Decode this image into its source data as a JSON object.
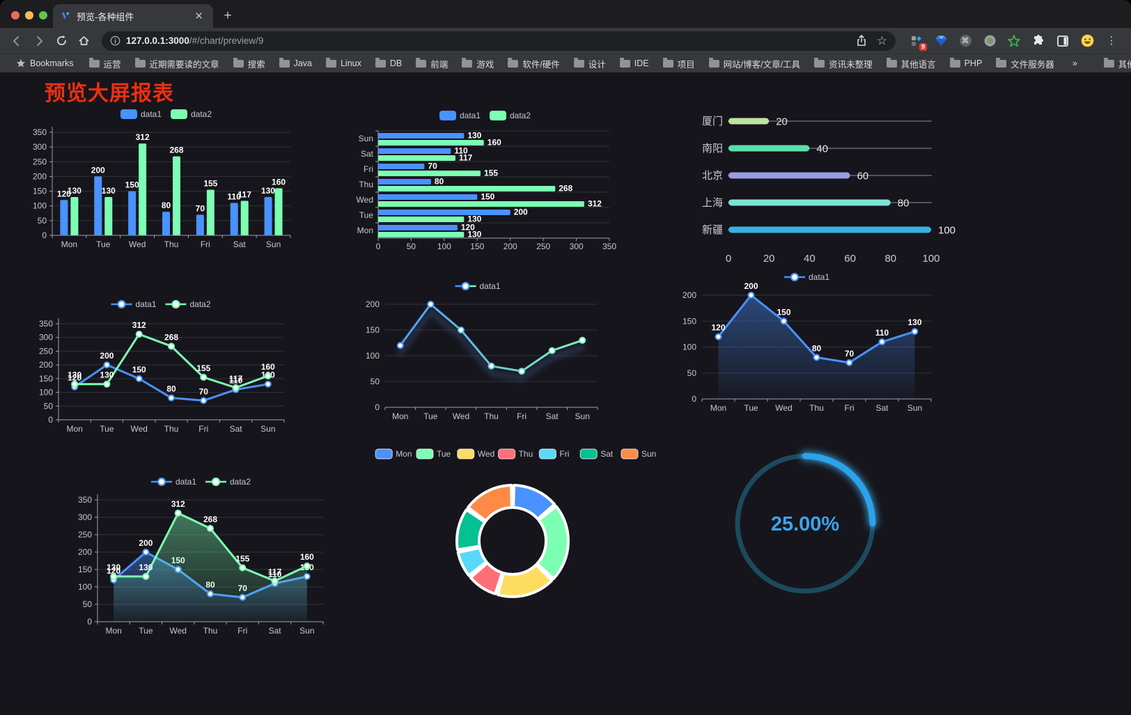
{
  "browser": {
    "tab": {
      "title": "预览-各种组件"
    },
    "url": {
      "host": "127.0.0.1:3000",
      "path": "/#/chart/preview/9"
    },
    "extension_badge": "9",
    "bookmarks_bar": {
      "root_label": "Bookmarks",
      "folders": [
        "运营",
        "近期需要读的文章",
        "搜索",
        "Java",
        "Linux",
        "DB",
        "前端",
        "游戏",
        "软件/硬件",
        "设计",
        "IDE",
        "项目",
        "网站/博客/文章/工具",
        "资讯未整理",
        "其他语言",
        "PHP",
        "文件服务器"
      ],
      "overflow": "»",
      "other": "其他书签"
    }
  },
  "page": {
    "title": "预览大屏报表",
    "title_color": "#ee2f10",
    "background": "#16151c"
  },
  "palette": {
    "data1": "#4992ff",
    "data2": "#7cffb2",
    "grid": "#31323c",
    "axis": "#9da0ae",
    "tick_text": "#c6c8d2",
    "value_label": "#ffffff"
  },
  "chart_data": [
    {
      "id": "grouped-bar-weekly",
      "type": "bar",
      "categories": [
        "Mon",
        "Tue",
        "Wed",
        "Thu",
        "Fri",
        "Sat",
        "Sun"
      ],
      "series": [
        {
          "name": "data1",
          "color": "#4992ff",
          "values": [
            120,
            200,
            150,
            80,
            70,
            110,
            130
          ]
        },
        {
          "name": "data2",
          "color": "#7cffb2",
          "values": [
            130,
            130,
            312,
            268,
            155,
            117,
            160
          ]
        }
      ],
      "ylim": [
        0,
        350
      ],
      "ytick_step": 50,
      "grid": true,
      "legend_position": "top"
    },
    {
      "id": "horizontal-bar-weekly",
      "type": "bar",
      "orientation": "horizontal",
      "categories_top_to_bottom": [
        "Sun",
        "Sat",
        "Fri",
        "Thu",
        "Wed",
        "Tue",
        "Mon"
      ],
      "series": [
        {
          "name": "data1",
          "color": "#4992ff",
          "values_top_to_bottom": [
            130,
            110,
            70,
            80,
            150,
            200,
            120
          ]
        },
        {
          "name": "data2",
          "color": "#7cffb2",
          "values_top_to_bottom": [
            160,
            117,
            155,
            268,
            312,
            130,
            130
          ]
        }
      ],
      "xlim": [
        0,
        350
      ],
      "xticks": [
        0,
        50,
        100,
        150,
        200,
        250,
        300,
        350
      ],
      "grid": true,
      "legend_position": "top"
    },
    {
      "id": "city-progress",
      "type": "bar",
      "orientation": "horizontal",
      "variant": "progress",
      "categories": [
        "厦门",
        "南阳",
        "北京",
        "上海",
        "新疆"
      ],
      "values": [
        20,
        40,
        60,
        80,
        100
      ],
      "colors": [
        "#bfe3a1",
        "#58e0aa",
        "#9a9ce5",
        "#7ce3d5",
        "#38b1e3"
      ],
      "xlim": [
        0,
        100
      ],
      "xticks": [
        0,
        20,
        40,
        60,
        80,
        100
      ],
      "grid": false
    },
    {
      "id": "line-weekly",
      "type": "line",
      "categories": [
        "Mon",
        "Tue",
        "Wed",
        "Thu",
        "Fri",
        "Sat",
        "Sun"
      ],
      "series": [
        {
          "name": "data1",
          "color": "#4992ff",
          "values": [
            120,
            200,
            150,
            80,
            70,
            110,
            130
          ]
        },
        {
          "name": "data2",
          "color": "#7cffb2",
          "values": [
            130,
            130,
            312,
            268,
            155,
            117,
            160
          ]
        }
      ],
      "ylim": [
        0,
        350
      ],
      "ytick_step": 50,
      "grid": true,
      "point_labels": true,
      "legend_position": "top"
    },
    {
      "id": "gradient-line-weekly",
      "type": "line",
      "categories": [
        "Mon",
        "Tue",
        "Wed",
        "Thu",
        "Fri",
        "Sat",
        "Sun"
      ],
      "series": [
        {
          "name": "data1",
          "gradient": [
            "#4992ff",
            "#7cffb2"
          ],
          "values": [
            120,
            200,
            150,
            80,
            70,
            110,
            130
          ]
        }
      ],
      "ylim": [
        0,
        200
      ],
      "ytick_step": 50,
      "grid": true,
      "point_labels": false,
      "legend_position": "top"
    },
    {
      "id": "area-line-weekly",
      "type": "area",
      "categories": [
        "Mon",
        "Tue",
        "Wed",
        "Thu",
        "Fri",
        "Sat",
        "Sun"
      ],
      "series": [
        {
          "name": "data1",
          "color": "#4992ff",
          "values": [
            120,
            200,
            150,
            80,
            70,
            110,
            130
          ],
          "area": true
        }
      ],
      "ylim": [
        0,
        200
      ],
      "ytick_step": 50,
      "grid": true,
      "point_labels": true,
      "legend_position": "top"
    },
    {
      "id": "area-two-series-weekly",
      "type": "area",
      "categories": [
        "Mon",
        "Tue",
        "Wed",
        "Thu",
        "Fri",
        "Sat",
        "Sun"
      ],
      "series": [
        {
          "name": "data1",
          "color": "#4992ff",
          "values": [
            120,
            200,
            150,
            80,
            70,
            110,
            130
          ],
          "area": true
        },
        {
          "name": "data2",
          "color": "#7cffb2",
          "values": [
            130,
            130,
            312,
            268,
            155,
            117,
            160
          ],
          "area": true
        }
      ],
      "ylim": [
        0,
        350
      ],
      "ytick_step": 50,
      "grid": true,
      "point_labels": true,
      "legend_position": "top"
    },
    {
      "id": "weekday-donut",
      "type": "pie",
      "categories": [
        "Mon",
        "Tue",
        "Wed",
        "Thu",
        "Fri",
        "Sat",
        "Sun"
      ],
      "values": [
        120,
        200,
        150,
        80,
        70,
        110,
        130
      ],
      "colors": [
        "#4992ff",
        "#7cffb2",
        "#fddd60",
        "#ff6e76",
        "#58d9f9",
        "#05c091",
        "#ff8a45"
      ],
      "inner_radius_ratio": 0.6,
      "legend_position": "top"
    },
    {
      "id": "percent-gauge",
      "type": "gauge",
      "value": 25,
      "label": "25.00%",
      "min": 0,
      "max": 100,
      "color": "#29a3ea",
      "track_color": "#1c4a5e",
      "text_color": "#3aa4ec"
    }
  ]
}
